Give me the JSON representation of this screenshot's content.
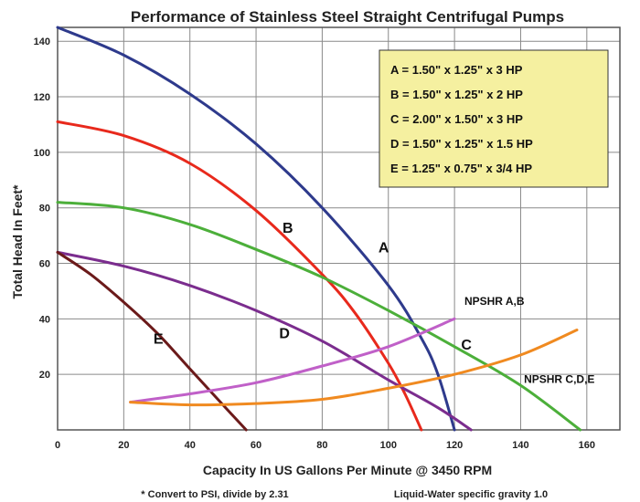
{
  "chart_data": {
    "type": "line",
    "title": "Performance of Stainless Steel Straight Centrifugal Pumps",
    "xlabel": "Capacity In US Gallons Per Minute @ 3450 RPM",
    "ylabel": "Total Head In Feet*",
    "xlim": [
      0,
      170
    ],
    "ylim": [
      0,
      145
    ],
    "xticks": [
      0,
      20,
      40,
      60,
      80,
      100,
      120,
      140,
      160
    ],
    "yticks": [
      20,
      40,
      60,
      80,
      100,
      120,
      140
    ],
    "grid": true,
    "legend": {
      "placement": "top-right",
      "background": "#f5f0a0",
      "entries": [
        "A = 1.50\" x 1.25\" x 3 HP",
        "B = 1.50\" x 1.25\" x 2 HP",
        "C = 2.00\" x 1.50\" x 3 HP",
        "D = 1.50\" x 1.25\" x 1.5 HP",
        "E = 1.25\" x 0.75\"  x 3/4 HP"
      ]
    },
    "series": [
      {
        "name": "A",
        "color": "#2e3a8c",
        "label_at": [
          97,
          64
        ],
        "x": [
          0,
          20,
          40,
          60,
          80,
          100,
          110,
          115,
          120
        ],
        "y": [
          145,
          135,
          121,
          103,
          80,
          52,
          33,
          20,
          0
        ]
      },
      {
        "name": "B",
        "color": "#e8291c",
        "label_at": [
          68,
          71
        ],
        "x": [
          0,
          20,
          40,
          60,
          80,
          90,
          100,
          105,
          110
        ],
        "y": [
          111,
          106,
          96,
          79,
          56,
          42,
          24,
          13,
          0
        ]
      },
      {
        "name": "C",
        "color": "#4caf3a",
        "label_at": [
          122,
          29
        ],
        "x": [
          0,
          20,
          40,
          60,
          80,
          100,
          120,
          140,
          158
        ],
        "y": [
          82,
          80,
          74,
          65,
          55,
          43,
          30,
          16,
          0
        ]
      },
      {
        "name": "D",
        "color": "#7b2d8e",
        "label_at": [
          67,
          33
        ],
        "x": [
          0,
          20,
          40,
          60,
          80,
          100,
          115,
          125
        ],
        "y": [
          64,
          59,
          52,
          43,
          32,
          18,
          8,
          0
        ]
      },
      {
        "name": "E",
        "color": "#6b1a1a",
        "label_at": [
          29,
          31
        ],
        "x": [
          0,
          10,
          20,
          30,
          40,
          50,
          57
        ],
        "y": [
          64,
          56,
          46,
          35,
          22,
          9,
          0
        ]
      },
      {
        "name": "NPSHR A,B",
        "color": "#c060c8",
        "label_at": [
          123,
          45
        ],
        "x": [
          22,
          40,
          60,
          80,
          100,
          120
        ],
        "y": [
          10,
          13,
          17,
          23,
          30,
          40
        ]
      },
      {
        "name": "NPSHR C,D,E",
        "color": "#f08a20",
        "label_at": [
          141,
          17
        ],
        "x": [
          22,
          40,
          60,
          80,
          100,
          120,
          140,
          157
        ],
        "y": [
          10,
          9,
          9.5,
          11,
          15,
          20,
          27,
          36
        ]
      }
    ],
    "annotations": [
      "* Convert to PSI, divide by 2.31",
      "Liquid-Water specific gravity 1.0"
    ]
  }
}
